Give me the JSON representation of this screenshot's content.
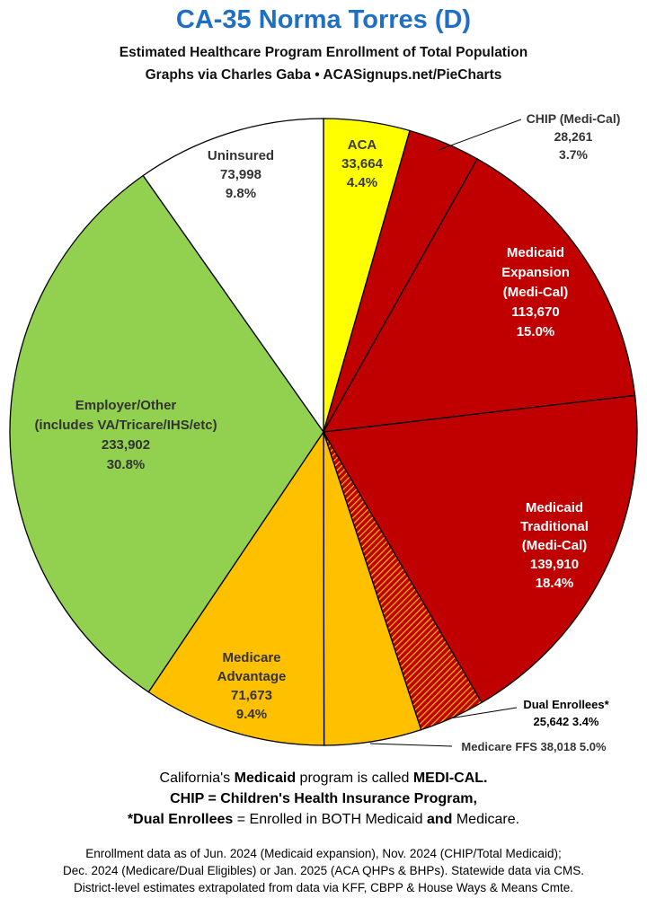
{
  "header": {
    "title": "CA-35 Norma Torres (D)",
    "subtitle": "Estimated Healthcare Program Enrollment of Total Population",
    "credit": "Graphs via Charles Gaba   •   ACASignups.net/PieCharts"
  },
  "chart_data": {
    "type": "pie",
    "start": "12 o'clock",
    "direction": "clockwise",
    "slices": [
      {
        "label": "ACA",
        "value": 33664,
        "percent": "4.4%",
        "color": "#ffff00",
        "text_color": "#3a3a3a"
      },
      {
        "label": "CHIP (Medi-Cal)",
        "value": 28261,
        "percent": "3.7%",
        "color": "#c00000",
        "text_color": "#333333"
      },
      {
        "label": "Medicaid Expansion (Medi-Cal)",
        "value": 113670,
        "percent": "15.0%",
        "color": "#c00000",
        "text_color": "#ffffff"
      },
      {
        "label": "Medicaid Traditional (Medi-Cal)",
        "value": 139910,
        "percent": "18.4%",
        "color": "#c00000",
        "text_color": "#ffffff"
      },
      {
        "label": "Dual Enrollees*",
        "value": 25642,
        "percent": "3.4%",
        "color": "#c00000",
        "hatch_color": "#ffc000",
        "text_color": "#000000"
      },
      {
        "label": "Medicare FFS",
        "value": 38018,
        "percent": "5.0%",
        "color": "#ffc000",
        "text_color": "#333333"
      },
      {
        "label": "Medicare Advantage",
        "value": 71673,
        "percent": "9.4%",
        "color": "#ffc000",
        "text_color": "#333333"
      },
      {
        "label": "Employer/Other (includes VA/Tricare/IHS/etc)",
        "value": 233902,
        "percent": "30.8%",
        "color": "#92d050",
        "text_color": "#333333"
      },
      {
        "label": "Uninsured",
        "value": 73998,
        "percent": "9.8%",
        "color": "#ffffff",
        "text_color": "#333333"
      }
    ],
    "labels": [
      {
        "lines": [
          "ACA",
          "33,664",
          "4.4%"
        ]
      },
      {
        "lines": [
          "CHIP (Medi-Cal)",
          "28,261",
          "3.7%"
        ]
      },
      {
        "lines": [
          "Medicaid",
          "Expansion",
          "(Medi-Cal)",
          "113,670",
          "15.0%"
        ]
      },
      {
        "lines": [
          "Medicaid",
          "Traditional",
          "(Medi-Cal)",
          "139,910",
          "18.4%"
        ]
      },
      {
        "lines": [
          "Dual Enrollees*",
          "25,642 3.4%"
        ]
      },
      {
        "lines": [
          "Medicare FFS 38,018 5.0%"
        ]
      },
      {
        "lines": [
          "Medicare",
          "Advantage",
          "71,673",
          "9.4%"
        ]
      },
      {
        "lines": [
          "Employer/Other",
          "(includes VA/Tricare/IHS/etc)",
          "233,902",
          "30.8%"
        ]
      },
      {
        "lines": [
          "Uninsured",
          "73,998",
          "9.8%"
        ]
      }
    ]
  },
  "notes": {
    "line1": {
      "a": "California's ",
      "b": "Medicaid",
      "c": " program is called ",
      "d": "MEDI-CAL."
    },
    "line2": "CHIP = Children's Health Insurance Program,",
    "line3": {
      "a": "*Dual Enrollees",
      "b": " = Enrolled in BOTH Medicaid ",
      "c": "and",
      "d": " Medicare."
    }
  },
  "footer": {
    "line1": "Enrollment data as of Jun. 2024 (Medicaid expansion), Nov. 2024 (CHIP/Total Medicaid);",
    "line2": "Dec. 2024 (Medicare/Dual Eligibles) or Jan. 2025 (ACA QHPs & BHPs). Statewide data via CMS.",
    "line3": "District-level estimates extrapolated from data via KFF, CBPP & House Ways & Means Cmte."
  }
}
